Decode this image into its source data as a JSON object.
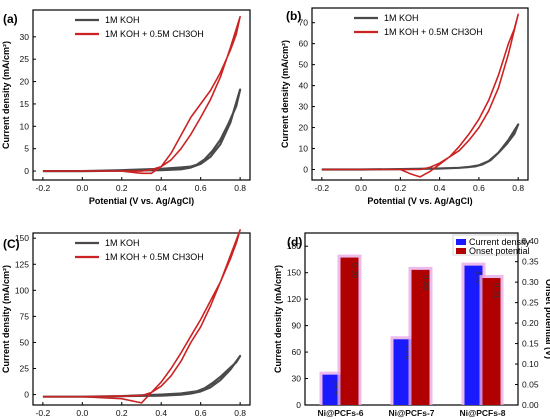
{
  "colors": {
    "koh": "#4a4a4a",
    "koh_methanol": "#cc2222",
    "current_density_bar": "#1a1aff",
    "onset_bar": "#b00000",
    "bar_glow": "#e7a9e6",
    "left_axis_title": "#1a1aff",
    "right_axis_title": "#cc0000"
  },
  "chart_data": [
    {
      "panel": "(a)",
      "type": "line",
      "xlabel": "Potential (V vs. Ag/AgCl)",
      "ylabel": "Current density (mA/cm²)",
      "xlim": [
        -0.25,
        0.85
      ],
      "ylim": [
        -2,
        36
      ],
      "xticks": [
        -0.2,
        0.0,
        0.2,
        0.4,
        0.6,
        0.8
      ],
      "xtick_labels": [
        "-0.2",
        "0.0",
        "0.2",
        "0.4",
        "0.6",
        "0.8"
      ],
      "yticks": [
        0,
        5,
        10,
        15,
        20,
        25,
        30
      ],
      "ytick_labels": [
        "0",
        "5",
        "10",
        "15",
        "20",
        "25",
        "30"
      ],
      "legend_position": "top-left",
      "series": [
        {
          "name": "1M KOH",
          "color_key": "koh",
          "x": [
            -0.2,
            0.0,
            0.2,
            0.4,
            0.5,
            0.55,
            0.6,
            0.65,
            0.7,
            0.75,
            0.8,
            0.78,
            0.74,
            0.7,
            0.66,
            0.62,
            0.58,
            0.55,
            0.5,
            0.4,
            0.2,
            0.0,
            -0.2
          ],
          "y": [
            0,
            0,
            0.1,
            0.2,
            0.4,
            0.8,
            1.6,
            3.2,
            6.0,
            10.8,
            18.2,
            14.5,
            10.5,
            7.0,
            4.5,
            2.6,
            1.4,
            1.0,
            0.8,
            0.5,
            0.2,
            0,
            0
          ]
        },
        {
          "name": "1M KOH + 0.5M CH3OH",
          "color_key": "koh_methanol",
          "x": [
            -0.2,
            0.0,
            0.2,
            0.3,
            0.35,
            0.4,
            0.45,
            0.5,
            0.55,
            0.6,
            0.65,
            0.7,
            0.75,
            0.8,
            0.78,
            0.75,
            0.7,
            0.65,
            0.6,
            0.55,
            0.5,
            0.45,
            0.4,
            0.35,
            0.3,
            0.2,
            0.0,
            -0.2
          ],
          "y": [
            0,
            0,
            0,
            0,
            0.3,
            1.0,
            2.5,
            5.0,
            8.2,
            12.0,
            16.0,
            21.0,
            27.5,
            34.5,
            30.5,
            27.0,
            22.0,
            18.0,
            15.0,
            12.0,
            8.0,
            4.0,
            1.0,
            -0.5,
            -0.5,
            0,
            0,
            0
          ]
        }
      ]
    },
    {
      "panel": "(b)",
      "type": "line",
      "xlabel": "Potential (V vs. Ag/AgCl)",
      "ylabel": "Current density (mA/cm²)",
      "xlim": [
        -0.25,
        0.85
      ],
      "ylim": [
        -5,
        77
      ],
      "xticks": [
        -0.2,
        0.0,
        0.2,
        0.4,
        0.6,
        0.8
      ],
      "xtick_labels": [
        "-0.2",
        "0.0",
        "0.2",
        "0.4",
        "0.6",
        "0.8"
      ],
      "yticks": [
        0,
        10,
        20,
        30,
        40,
        50,
        60,
        70
      ],
      "ytick_labels": [
        "0",
        "10",
        "20",
        "30",
        "40",
        "50",
        "60",
        "70"
      ],
      "legend_position": "top-left",
      "series": [
        {
          "name": "1M KOH",
          "color_key": "koh",
          "x": [
            -0.2,
            0.0,
            0.2,
            0.4,
            0.5,
            0.55,
            0.6,
            0.65,
            0.7,
            0.75,
            0.8,
            0.78,
            0.74,
            0.7,
            0.66,
            0.62,
            0.58,
            0.5,
            0.4,
            0.2,
            0.0,
            -0.2
          ],
          "y": [
            0,
            0,
            0.2,
            0.5,
            0.8,
            1.2,
            2.0,
            4.0,
            8.0,
            14.0,
            21.5,
            17.0,
            12.0,
            8.0,
            4.5,
            2.5,
            1.5,
            0.8,
            0.5,
            0.2,
            0,
            0
          ]
        },
        {
          "name": "1M KOH + 0.5M CH3OH",
          "color_key": "koh_methanol",
          "x": [
            -0.2,
            0.0,
            0.2,
            0.3,
            0.35,
            0.4,
            0.45,
            0.5,
            0.55,
            0.6,
            0.65,
            0.7,
            0.75,
            0.8,
            0.78,
            0.75,
            0.7,
            0.65,
            0.6,
            0.55,
            0.5,
            0.45,
            0.4,
            0.35,
            0.3,
            0.25,
            0.2,
            0.0,
            -0.2
          ],
          "y": [
            0,
            0,
            0,
            0,
            1.0,
            3.0,
            6.0,
            9.0,
            14.0,
            20.0,
            28.0,
            39.0,
            55.0,
            74.0,
            67.0,
            60.0,
            45.0,
            33.0,
            24.0,
            17.0,
            11.0,
            6.0,
            2.5,
            -1.0,
            -3.5,
            -2.0,
            0,
            0,
            0
          ]
        }
      ]
    },
    {
      "panel": "(C)",
      "type": "line",
      "xlabel": "Potential (V vs. Ag/AgCl)",
      "ylabel": "Current density (mA/cm²)",
      "xlim": [
        -0.25,
        0.85
      ],
      "ylim": [
        -10,
        155
      ],
      "xticks": [
        -0.2,
        0.0,
        0.2,
        0.4,
        0.6,
        0.8
      ],
      "xtick_labels": [
        "-0.2",
        "0.0",
        "0.2",
        "0.4",
        "0.6",
        "0.8"
      ],
      "yticks": [
        0,
        25,
        50,
        75,
        100,
        125,
        150
      ],
      "ytick_labels": [
        "0",
        "25",
        "50",
        "75",
        "100",
        "125",
        "150"
      ],
      "legend_position": "top-left",
      "series": [
        {
          "name": "1M KOH",
          "color_key": "koh",
          "x": [
            -0.2,
            0.0,
            0.2,
            0.4,
            0.5,
            0.55,
            0.6,
            0.65,
            0.7,
            0.75,
            0.8,
            0.78,
            0.74,
            0.7,
            0.66,
            0.62,
            0.58,
            0.5,
            0.4,
            0.2,
            0.0,
            -0.2
          ],
          "y": [
            -2,
            -2,
            -1.5,
            -1,
            0,
            1,
            3,
            7,
            14,
            24,
            37,
            31,
            24,
            17,
            11,
            6,
            3,
            1,
            0,
            -1.5,
            -2,
            -2
          ]
        },
        {
          "name": "1M KOH + 0.5M CH3OH",
          "color_key": "koh_methanol",
          "x": [
            -0.2,
            0.0,
            0.2,
            0.3,
            0.35,
            0.4,
            0.45,
            0.5,
            0.55,
            0.6,
            0.65,
            0.7,
            0.75,
            0.8,
            0.78,
            0.75,
            0.7,
            0.65,
            0.6,
            0.55,
            0.5,
            0.45,
            0.4,
            0.35,
            0.3,
            0.2,
            0.0,
            -0.2
          ],
          "y": [
            -2,
            -2,
            -1.5,
            -1,
            2,
            8,
            18,
            32,
            50,
            65,
            85,
            108,
            133,
            158,
            145,
            130,
            108,
            90,
            72,
            56,
            40,
            25,
            12,
            2,
            -8,
            -4,
            -2,
            -2
          ]
        }
      ]
    },
    {
      "panel": "(d)",
      "type": "bar",
      "categories": [
        "Ni@PCFs-6",
        "Ni@PCFs-7",
        "Ni@PCFs-8"
      ],
      "ylabel_left": "Current  density (mA/cm²)",
      "ylabel_right": "Onset potential (V)",
      "ylim_left": [
        0,
        195
      ],
      "yticks_left": [
        0,
        30,
        60,
        90,
        120,
        150,
        180
      ],
      "ytick_labels_left": [
        "0",
        "30",
        "60",
        "90",
        "120",
        "150",
        "180"
      ],
      "ylim_right": [
        0,
        0.42
      ],
      "yticks_right": [
        0.0,
        0.05,
        0.1,
        0.15,
        0.2,
        0.25,
        0.3,
        0.35,
        0.4
      ],
      "ytick_labels_right": [
        "0.00",
        "0.05",
        "0.10",
        "0.15",
        "0.20",
        "0.25",
        "0.30",
        "0.35",
        "0.40"
      ],
      "legend_position": "top-right",
      "series": [
        {
          "name": "Current density",
          "axis": "left",
          "color_key": "current_density_bar",
          "values": [
            34.4,
            74.5,
            158
          ],
          "labels": [
            "34.4",
            "74.5",
            "158"
          ]
        },
        {
          "name": "Onset potential",
          "axis": "right",
          "color_key": "onset_bar",
          "values": [
            0.36,
            0.33,
            0.31
          ],
          "labels": [
            "0.36",
            "0.33",
            "0.31"
          ]
        }
      ]
    }
  ]
}
